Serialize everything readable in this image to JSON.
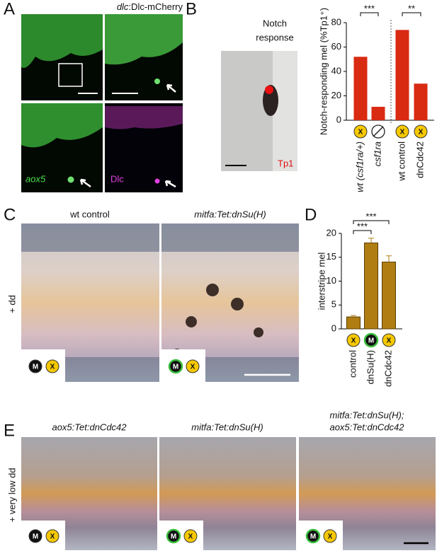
{
  "panels": {
    "letters": [
      "A",
      "B",
      "C",
      "D",
      "E"
    ],
    "a_title_italic": "dlc",
    "a_title_rest": ":Dlc-mCherry",
    "a_label_green": "aox5",
    "a_label_magenta": "Dlc",
    "b_photo_title": [
      "Notch",
      "response"
    ],
    "b_photo_label": "Tp1",
    "c_titles": [
      "wt control",
      "mitfa:Tet:dnSu(H)"
    ],
    "c_side": "+ dd",
    "e_titles": [
      "aox5:Tet:dnCdc42",
      "mitfa:Tet:dnSu(H)",
      "mitfa:Tet:dnSu(H);",
      "aox5:Tet:dnCdc42"
    ],
    "e_side": "+ very low dd",
    "icon_x": "X",
    "icon_m": "M"
  },
  "chart_data": [
    {
      "type": "bar",
      "y_label": "Notch-responding mel (%Tp1⁺)",
      "categories": [
        "wt (csf1ra/+)",
        "csf1ra",
        "wt control",
        "dnCdc42"
      ],
      "values": [
        52,
        11,
        74,
        30
      ],
      "color": "#d92a12",
      "ylim": [
        0,
        80
      ],
      "yticks": [
        0,
        20,
        40,
        60,
        80
      ],
      "annotations": [
        "***",
        "**"
      ]
    },
    {
      "type": "bar",
      "y_label": "interstripe mel",
      "categories": [
        "control",
        "dnSu(H)",
        "dnCdc42"
      ],
      "values": [
        2.5,
        18,
        14
      ],
      "errors": [
        0.3,
        1,
        1.3
      ],
      "color": "#b07d12",
      "ylim": [
        0,
        20
      ],
      "yticks": [
        0,
        5,
        10,
        15,
        20
      ],
      "annotations": [
        "***",
        "***"
      ]
    }
  ]
}
